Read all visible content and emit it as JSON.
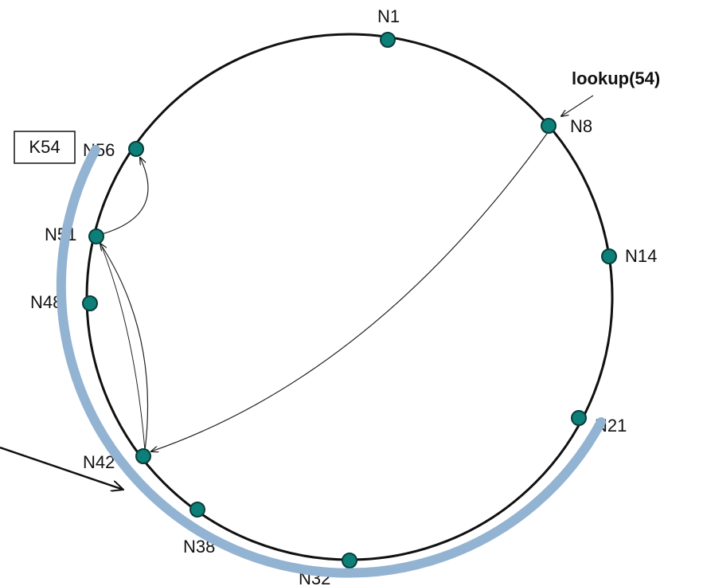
{
  "key": {
    "label": "K54"
  },
  "lookup": {
    "label": "lookup(54)"
  },
  "nodes": [
    {
      "label": "N1"
    },
    {
      "label": "N8"
    },
    {
      "label": "N14"
    },
    {
      "label": "N21"
    },
    {
      "label": "N32"
    },
    {
      "label": "N38"
    },
    {
      "label": "N42"
    },
    {
      "label": "N48"
    },
    {
      "label": "N51"
    },
    {
      "label": "N56"
    }
  ]
}
